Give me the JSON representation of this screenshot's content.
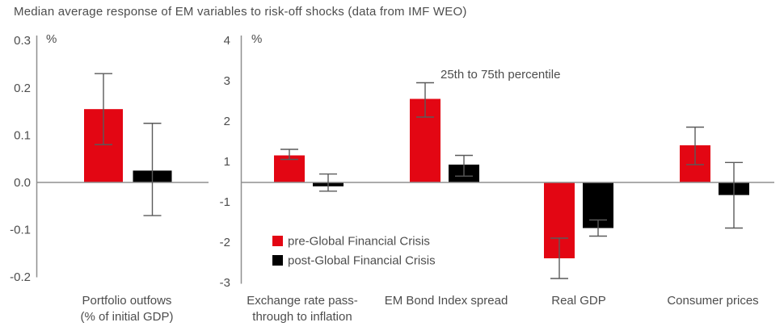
{
  "title": "Median average response of EM variables to risk-off shocks (data from IMF WEO)",
  "annotation": "25th to 75th percentile",
  "legend": [
    {
      "label": "pre-Global Financial Crisis",
      "series_key": "pre"
    },
    {
      "label": "post-Global Financial Crisis",
      "series_key": "post"
    }
  ],
  "colors": {
    "pre": "#e30613",
    "post": "#000000",
    "error_bar": "#5a5a5a",
    "axis": "#8f8f8f",
    "text": "#4d4d4d"
  },
  "chart_data": [
    {
      "type": "bar",
      "panel": "left",
      "unit": "%",
      "y_ticks": [
        0.3,
        0.2,
        0.1,
        0.0,
        -0.1,
        -0.2
      ],
      "ylim": [
        -0.2,
        0.3
      ],
      "grid": false,
      "categories": [
        "Portfolio outfows\n(% of initial GDP)"
      ],
      "series": [
        {
          "name": "pre-Global Financial Crisis",
          "values": [
            0.155
          ],
          "error_low": [
            0.08
          ],
          "error_high": [
            0.23
          ]
        },
        {
          "name": "post-Global Financial Crisis",
          "values": [
            0.025
          ],
          "error_low": [
            -0.07
          ],
          "error_high": [
            0.125
          ]
        }
      ]
    },
    {
      "type": "bar",
      "panel": "right",
      "unit": "%",
      "y_ticks": [
        4,
        3,
        2,
        1,
        -1,
        -2,
        -3
      ],
      "ylim": [
        -3,
        4
      ],
      "grid": false,
      "zero_label_omitted": true,
      "categories": [
        "Exchange rate pass-\nthrough to inflation",
        "EM Bond Index spread",
        "Real GDP",
        "Consumer prices"
      ],
      "series": [
        {
          "name": "pre-Global Financial Crisis",
          "values": [
            1.15,
            2.55,
            -2.4,
            1.4
          ],
          "error_low": [
            1.05,
            2.1,
            -2.9,
            0.85
          ],
          "error_high": [
            1.3,
            2.95,
            -1.9,
            1.85
          ]
        },
        {
          "name": "post-Global Financial Crisis",
          "values": [
            -0.2,
            0.85,
            -1.65,
            -0.65
          ],
          "error_low": [
            -0.45,
            0.3,
            -1.85,
            -1.65
          ],
          "error_high": [
            0.4,
            1.15,
            -1.45,
            0.95
          ]
        }
      ]
    }
  ]
}
